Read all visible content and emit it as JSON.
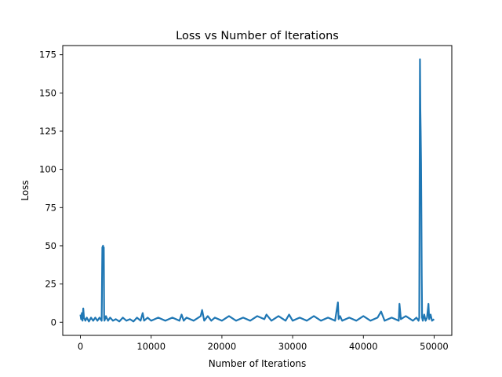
{
  "chart_data": {
    "type": "line",
    "title": "Loss vs Number of Iterations",
    "xlabel": "Number of Iterations",
    "ylabel": "Loss",
    "xlim": [
      -2500,
      52500
    ],
    "ylim": [
      -8.6,
      181
    ],
    "xticks": [
      0,
      10000,
      20000,
      30000,
      40000,
      50000
    ],
    "yticks": [
      0,
      25,
      50,
      75,
      100,
      125,
      150,
      175
    ],
    "grid": false,
    "legend": "none",
    "series": [
      {
        "color": "#1f77b4",
        "x": [
          0,
          100,
          200,
          300,
          400,
          500,
          700,
          900,
          1200,
          1500,
          1800,
          2100,
          2400,
          2700,
          3000,
          3100,
          3200,
          3250,
          3300,
          3350,
          3400,
          3600,
          3900,
          4200,
          4600,
          5000,
          5500,
          6000,
          6500,
          7000,
          7500,
          8000,
          8500,
          8800,
          9000,
          9500,
          10000,
          10500,
          11000,
          12000,
          13000,
          14000,
          14300,
          14600,
          15000,
          16000,
          17000,
          17200,
          17500,
          18000,
          18500,
          19000,
          20000,
          21000,
          22000,
          23000,
          24000,
          25000,
          26000,
          26300,
          27000,
          28000,
          29000,
          29500,
          30000,
          31000,
          32000,
          33000,
          34000,
          35000,
          36000,
          36400,
          36500,
          36700,
          37000,
          38000,
          39000,
          40000,
          41000,
          42000,
          42500,
          43000,
          44000,
          45000,
          45100,
          45300,
          46000,
          47000,
          47500,
          47800,
          47900,
          48000,
          48050,
          48100,
          48150,
          48200,
          48250,
          48300,
          48400,
          48600,
          48800,
          49000,
          49200,
          49300,
          49500,
          49700,
          50000
        ],
        "values": [
          5,
          2,
          6,
          1,
          9,
          3,
          1,
          3,
          0.5,
          3,
          1,
          3,
          1,
          3,
          1,
          49,
          50,
          48,
          49,
          3,
          1,
          4,
          1,
          3,
          1,
          2,
          0.5,
          3,
          1,
          2,
          0.5,
          3,
          1,
          6,
          1,
          3,
          1,
          2,
          3,
          1,
          3,
          1,
          5,
          1,
          3,
          1,
          4,
          8,
          1,
          4,
          1,
          3,
          1,
          4,
          1,
          3,
          1,
          4,
          2,
          5,
          1,
          4,
          1,
          5,
          1,
          3,
          1,
          4,
          1,
          3,
          1,
          13,
          2,
          4,
          1,
          3,
          1,
          4,
          1,
          3,
          7,
          1,
          3,
          1,
          12,
          2,
          4,
          1,
          3,
          1,
          3,
          172,
          140,
          125,
          105,
          70,
          30,
          3,
          1,
          5,
          1,
          3,
          12,
          2,
          5,
          1,
          2
        ]
      }
    ]
  }
}
